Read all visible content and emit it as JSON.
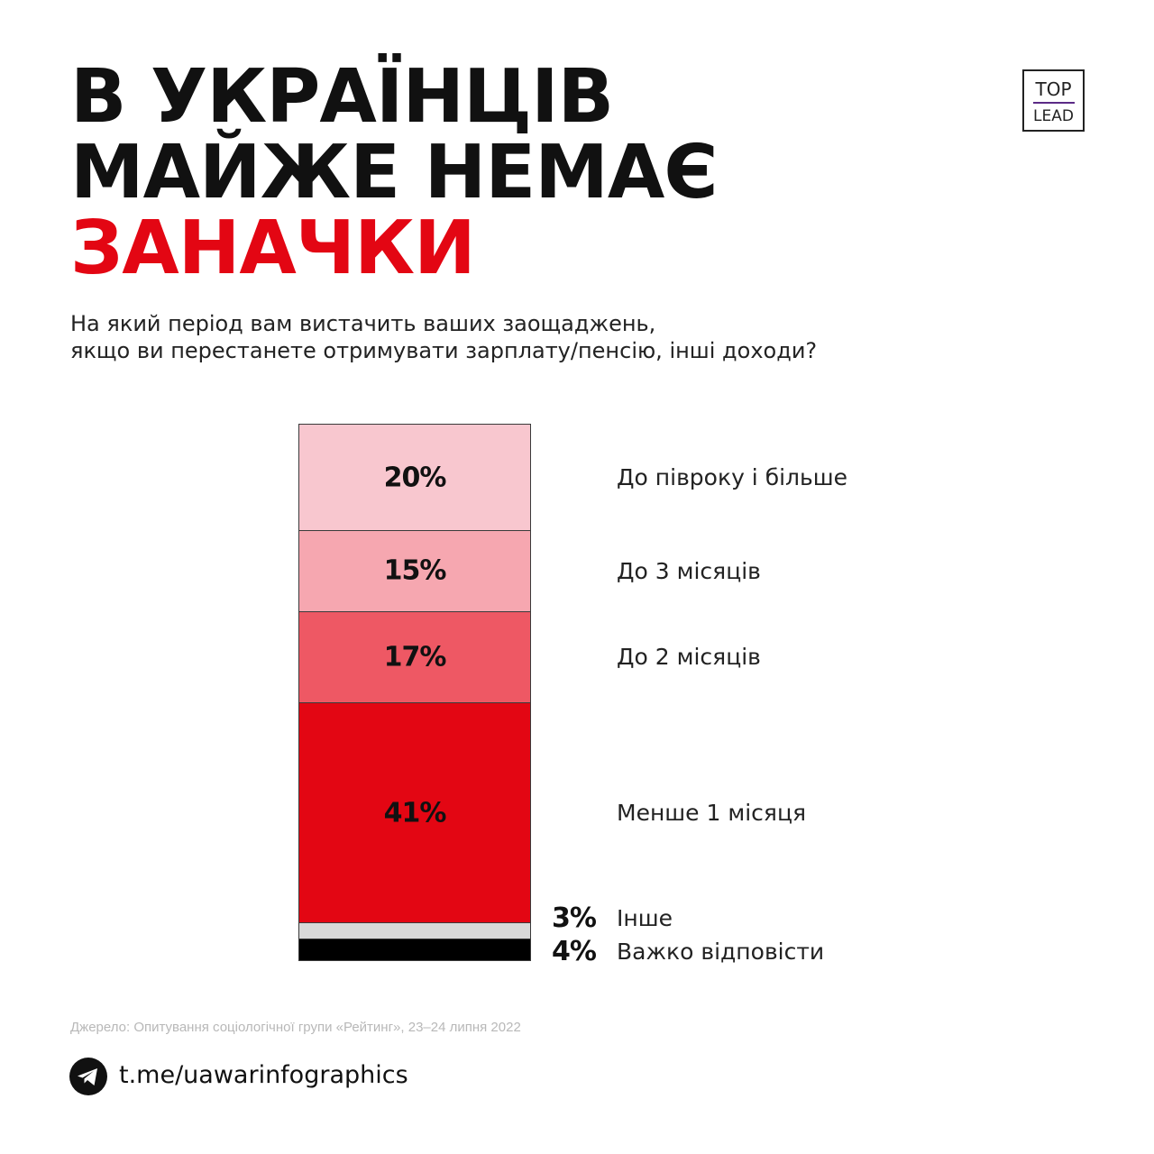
{
  "title": {
    "line1": "В УКРАЇНЦІВ",
    "line2": "МАЙЖЕ НЕМАЄ",
    "line3": "ЗАНАЧКИ"
  },
  "logo": {
    "top": "TOP",
    "bottom": "LEAD"
  },
  "question": {
    "line1": "На який період вам вистачить ваших заощаджень,",
    "line2": "якщо ви перестанете отримувати зарплату/пенсію, інші доходи?"
  },
  "chart_data": {
    "type": "bar",
    "stacked": true,
    "categories": [
      "До півроку і більше",
      "До 3 місяців",
      "До 2 місяців",
      "Менше 1 місяця",
      "Інше",
      "Важко відповісти"
    ],
    "values": [
      20,
      15,
      17,
      41,
      3,
      4
    ],
    "labels": [
      "20%",
      "15%",
      "17%",
      "41%",
      "3%",
      "4%"
    ],
    "colors": [
      "#f8c7cf",
      "#f6a7b0",
      "#ee5864",
      "#e30613",
      "#d9d9d9",
      "#000000"
    ],
    "inside_label": [
      true,
      true,
      true,
      true,
      false,
      false
    ]
  },
  "source": "Джерело: Опитування соціологічної групи «Рейтинг», 23–24 липня 2022",
  "footer": {
    "link": "t.me/uawarinfographics",
    "icon": "telegram-icon"
  }
}
